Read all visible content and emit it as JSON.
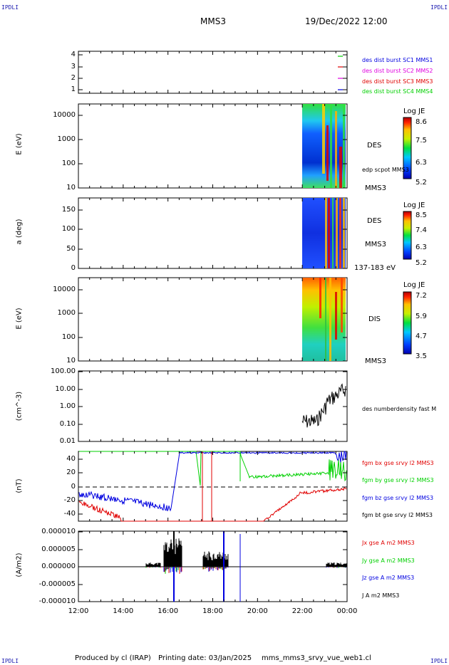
{
  "corner_labels": {
    "tl": "IPDLI",
    "tr": "IPDLI",
    "bl": "IPDLI",
    "br": "IPDLI"
  },
  "header": {
    "spacecraft": "MMS3",
    "datetime": "19/Dec/2022 12:00"
  },
  "footer": {
    "producer": "Produced by cl (IRAP)",
    "printing": "Printing date: 03/Jan/2025",
    "file": "mms_mms3_srvy_vue_web1.cl"
  },
  "colors": {
    "black": "#000000",
    "red": "#e00000",
    "green": "#00d000",
    "blue": "#0000e0",
    "magenta": "#e000e0"
  },
  "x_axis": {
    "tick_labels": [
      "12:00",
      "14:00",
      "16:00",
      "18:00",
      "20:00",
      "22:00",
      "00:00"
    ]
  },
  "chart_data": [
    {
      "type": "scatter",
      "panel": "availability",
      "ytick_labels": [
        "4",
        "3",
        "2",
        "1"
      ],
      "legend": [
        {
          "label": "des dist burst SC1 MMS1",
          "color": "#0000e0"
        },
        {
          "label": "des dist burst SC2 MMS2",
          "color": "#e000e0"
        },
        {
          "label": "des dist burst SC3 MMS3",
          "color": "#e00000"
        },
        {
          "label": "des dist burst SC4 MMS4",
          "color": "#00d000"
        }
      ]
    },
    {
      "type": "heatmap",
      "panel": "des-energy",
      "ylabel": "E (eV)",
      "ytick_labels": [
        "10000",
        "1000",
        "100",
        "10"
      ],
      "side_labels": [
        "DES",
        "edp scpot MMS3",
        "MMS3"
      ],
      "colorbar": {
        "title": "Log JE",
        "ticks": [
          "8.6",
          "7.5",
          "6.3",
          "5.2"
        ]
      }
    },
    {
      "type": "heatmap",
      "panel": "des-pitch",
      "ylabel": "a (deg)",
      "ytick_labels": [
        "150",
        "100",
        "50",
        "0"
      ],
      "side_labels": [
        "DES",
        "MMS3",
        "137-183 eV"
      ],
      "colorbar": {
        "title": "Log JE",
        "ticks": [
          "8.5",
          "7.4",
          "6.3",
          "5.2"
        ]
      }
    },
    {
      "type": "heatmap",
      "panel": "dis-energy",
      "ylabel": "E (eV)",
      "ytick_labels": [
        "10000",
        "1000",
        "100",
        "10"
      ],
      "side_labels": [
        "DIS",
        "MMS3"
      ],
      "colorbar": {
        "title": "Log JE",
        "ticks": [
          "7.2",
          "5.9",
          "4.7",
          "3.5"
        ]
      }
    },
    {
      "type": "line",
      "panel": "density",
      "ylabel": "(cm^-3)",
      "ytick_labels": [
        "100.00",
        "10.00",
        "1.00",
        "0.10",
        "0.01"
      ],
      "legend": [
        {
          "label": "des numberdensity fast M",
          "color": "#000000"
        }
      ]
    },
    {
      "type": "line",
      "panel": "magnetic-field",
      "ylabel": "(nT)",
      "ytick_labels": [
        "40",
        "20",
        "0",
        "-20",
        "-40"
      ],
      "ylim": [
        -50,
        50
      ],
      "legend": [
        {
          "label": "fgm bx gse srvy l2 MMS3",
          "color": "#e00000"
        },
        {
          "label": "fgm by gse srvy l2 MMS3",
          "color": "#00d000"
        },
        {
          "label": "fgm bz gse srvy l2 MMS3",
          "color": "#0000e0"
        },
        {
          "label": "fgm bt gse srvy l2 MMS3",
          "color": "#000000"
        }
      ]
    },
    {
      "type": "line",
      "panel": "current-density",
      "ylabel": "(A/m2)",
      "ytick_labels": [
        "0.000010",
        "0.000005",
        "0.000000",
        "-0.000005",
        "-0.000010"
      ],
      "legend": [
        {
          "label": "Jx gse A m2 MMS3",
          "color": "#e00000"
        },
        {
          "label": "Jy gse A m2 MMS3",
          "color": "#00d000"
        },
        {
          "label": "Jz gse A m2 MMS3",
          "color": "#0000e0"
        },
        {
          "label": "J A m2 MMS3",
          "color": "#000000"
        }
      ]
    }
  ]
}
